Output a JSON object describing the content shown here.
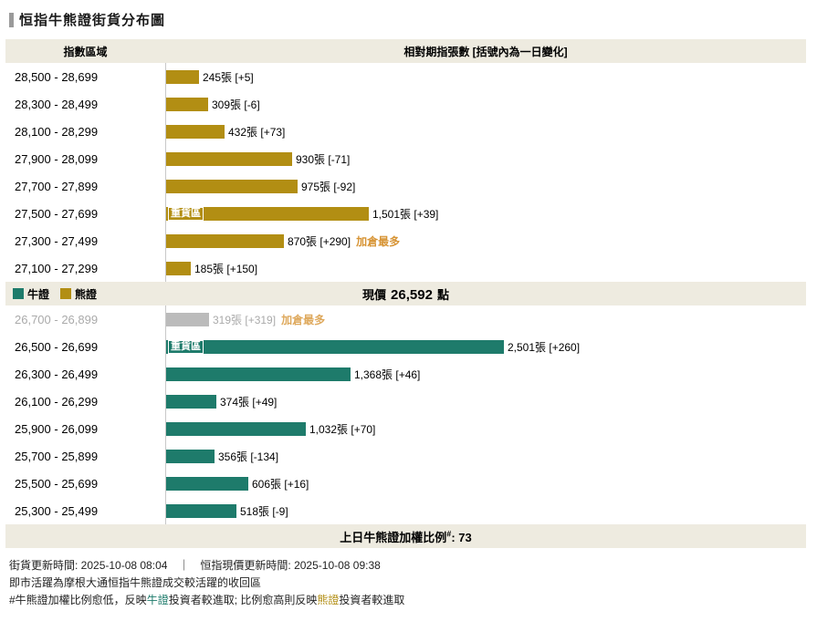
{
  "title": "恒指牛熊證街貨分布圖",
  "columns": {
    "left": "指數區域",
    "right": "相對期指張數 [括號內為一日變化]"
  },
  "legend": {
    "bull": "牛證",
    "bear": "熊證"
  },
  "price": {
    "label": "現價",
    "value": "26,592",
    "unit": "點"
  },
  "labels": {
    "heavy_zone": "重貨區",
    "most_added": "加倉最多"
  },
  "summary": {
    "label": "上日牛熊證加權比例",
    "sup": "#",
    "value": ": 73"
  },
  "notes": {
    "line1": "街貨更新時間: 2025-10-08 08:04　｜　恒指現價更新時間: 2025-10-08 09:38",
    "line2": "即市活躍為摩根大通恒指牛熊證成交較活躍的收回區",
    "line3_prefix": "#牛熊證加權比例愈低，反映",
    "line3_bull": "牛證",
    "line3_mid": "投資者較進取; 比例愈高則反映",
    "line3_bear": "熊證",
    "line3_suffix": "投資者較進取"
  },
  "colors": {
    "bull": "#1E7B6B",
    "bear": "#B28E13",
    "inactive_bar": "#BBBBBB",
    "inactive_text": "#AAAAAA",
    "highlight": "#D79435",
    "band_bg": "#EEEBE0"
  },
  "chart_data": {
    "type": "bar",
    "orientation": "horizontal",
    "title": "恒指牛熊證街貨分布圖",
    "unit": "張",
    "current_price": 26592,
    "weighted_ratio": 73,
    "x_max": 2501,
    "rows": [
      {
        "group": "bear",
        "range": "28,500 - 28,699",
        "value": 245,
        "change": 5,
        "label": "245張 [+5]"
      },
      {
        "group": "bear",
        "range": "28,300 - 28,499",
        "value": 309,
        "change": -6,
        "label": "309張 [-6]"
      },
      {
        "group": "bear",
        "range": "28,100 - 28,299",
        "value": 432,
        "change": 73,
        "label": "432張 [+73]"
      },
      {
        "group": "bear",
        "range": "27,900 - 28,099",
        "value": 930,
        "change": -71,
        "label": "930張 [-71]"
      },
      {
        "group": "bear",
        "range": "27,700 - 27,899",
        "value": 975,
        "change": -92,
        "label": "975張 [-92]"
      },
      {
        "group": "bear",
        "range": "27,500 - 27,699",
        "value": 1501,
        "change": 39,
        "label": "1,501張 [+39]",
        "heavy_zone": true
      },
      {
        "group": "bear",
        "range": "27,300 - 27,499",
        "value": 870,
        "change": 290,
        "label": "870張 [+290]",
        "most_added": true
      },
      {
        "group": "bear",
        "range": "27,100 - 27,299",
        "value": 185,
        "change": 150,
        "label": "185張 [+150]"
      },
      {
        "group": "inactive",
        "range": "26,700 - 26,899",
        "value": 319,
        "change": 319,
        "label": "319張 [+319]",
        "most_added": true
      },
      {
        "group": "bull",
        "range": "26,500 - 26,699",
        "value": 2501,
        "change": 260,
        "label": "2,501張 [+260]",
        "heavy_zone": true
      },
      {
        "group": "bull",
        "range": "26,300 - 26,499",
        "value": 1368,
        "change": 46,
        "label": "1,368張 [+46]"
      },
      {
        "group": "bull",
        "range": "26,100 - 26,299",
        "value": 374,
        "change": 49,
        "label": "374張 [+49]"
      },
      {
        "group": "bull",
        "range": "25,900 - 26,099",
        "value": 1032,
        "change": 70,
        "label": "1,032張 [+70]"
      },
      {
        "group": "bull",
        "range": "25,700 - 25,899",
        "value": 356,
        "change": -134,
        "label": "356張 [-134]"
      },
      {
        "group": "bull",
        "range": "25,500 - 25,699",
        "value": 606,
        "change": 16,
        "label": "606張 [+16]"
      },
      {
        "group": "bull",
        "range": "25,300 - 25,499",
        "value": 518,
        "change": -9,
        "label": "518張 [-9]"
      }
    ]
  }
}
